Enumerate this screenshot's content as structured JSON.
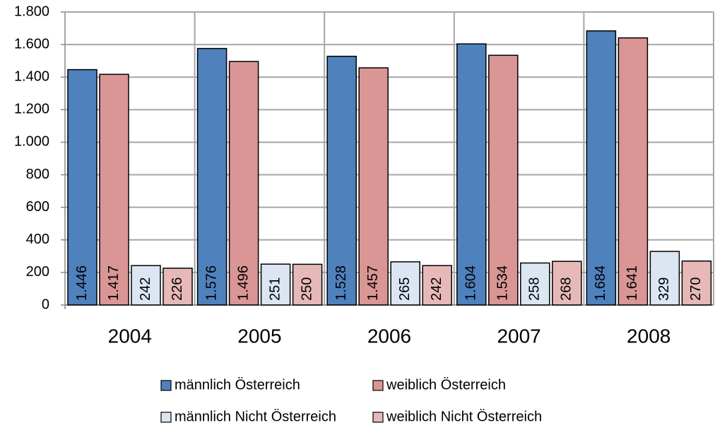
{
  "chart_data": {
    "type": "bar",
    "categories": [
      "2004",
      "2005",
      "2006",
      "2007",
      "2008"
    ],
    "series": [
      {
        "name": "männlich Österreich",
        "color": "#4f81bd",
        "values": [
          1446,
          1576,
          1528,
          1604,
          1684
        ],
        "value_labels": [
          "1.446",
          "1.576",
          "1.528",
          "1.604",
          "1.684"
        ]
      },
      {
        "name": "weiblich Österreich",
        "color": "#d99694",
        "values": [
          1417,
          1496,
          1457,
          1534,
          1641
        ],
        "value_labels": [
          "1.417",
          "1.496",
          "1.457",
          "1.534",
          "1.641"
        ]
      },
      {
        "name": "männlich Nicht Österreich",
        "color": "#dce6f2",
        "values": [
          242,
          251,
          265,
          258,
          329
        ]
      },
      {
        "name": "weiblich Nicht Österreich",
        "color": "#e6b9b8",
        "values": [
          226,
          250,
          242,
          268,
          270
        ]
      }
    ],
    "ylim": [
      0,
      1800
    ],
    "yticks": [
      0,
      200,
      400,
      600,
      800,
      {
        "value": 1000,
        "label": "1.000"
      },
      {
        "value": 1200,
        "label": "1.200"
      },
      {
        "value": 1400,
        "label": "1.400"
      },
      {
        "value": 1600,
        "label": "1.600"
      },
      {
        "value": 1800,
        "label": "1.800"
      }
    ],
    "grid": true
  }
}
